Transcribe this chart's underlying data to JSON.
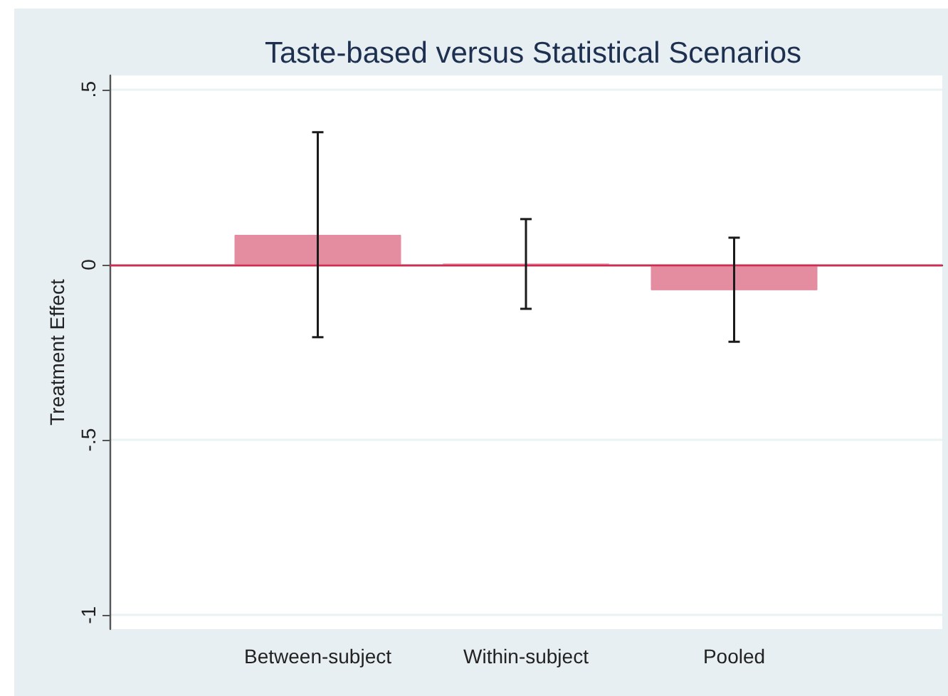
{
  "chart_data": {
    "type": "bar",
    "title": "Taste-based versus Statistical Scenarios",
    "ylabel": "Treatment Effect",
    "categories": [
      "Between-subject",
      "Within-subject",
      "Pooled"
    ],
    "values": [
      0.085,
      0.003,
      -0.073
    ],
    "color": "#e48ca0",
    "errors": [
      [
        -0.207,
        0.378
      ],
      [
        -0.126,
        0.13
      ],
      [
        -0.22,
        0.077
      ]
    ],
    "ylim": [
      -1.04,
      0.54
    ],
    "yticks": [
      {
        "value": 0.5,
        "label": ".5"
      },
      0,
      {
        "value": -0.5,
        "label": "-.5"
      },
      -1
    ],
    "grid": "y",
    "ref_lines": [
      {
        "axis": "y",
        "value": 0,
        "color": "#d42a52"
      }
    ]
  }
}
